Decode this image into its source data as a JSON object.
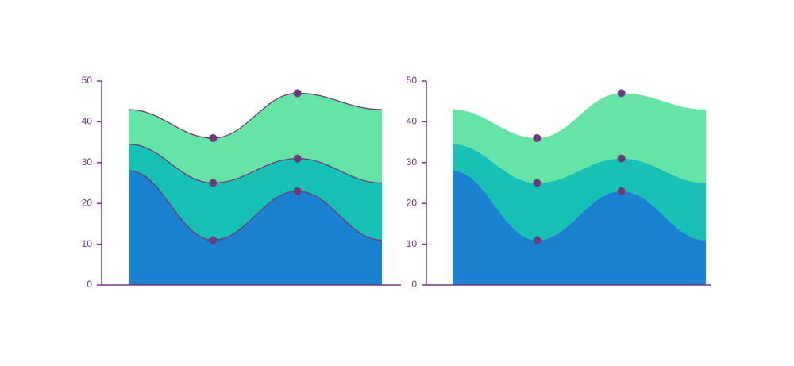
{
  "chart_data": [
    {
      "type": "stacked_area",
      "categories": [
        null,
        null,
        null,
        null
      ],
      "series": [
        {
          "color": "#1a82d0",
          "values": [
            28,
            11,
            23,
            11
          ]
        },
        {
          "color": "#17c2b4",
          "values": [
            6.5,
            14,
            8,
            14
          ]
        },
        {
          "color": "#66e4a6",
          "values": [
            8.5,
            11,
            16,
            18
          ]
        }
      ],
      "ylim": [
        0,
        50
      ],
      "yticks": [
        0,
        10,
        20,
        30,
        40,
        50
      ],
      "outline": true
    },
    {
      "type": "stacked_area",
      "categories": [
        null,
        null,
        null,
        null
      ],
      "series": [
        {
          "color": "#1a82d0",
          "values": [
            28,
            11,
            23,
            11
          ]
        },
        {
          "color": "#17c2b4",
          "values": [
            6.5,
            14,
            8,
            14
          ]
        },
        {
          "color": "#66e4a6",
          "values": [
            8.5,
            11,
            16,
            18
          ]
        }
      ],
      "ylim": [
        0,
        50
      ],
      "yticks": [
        0,
        10,
        20,
        30,
        40,
        50
      ],
      "outline": false
    }
  ]
}
